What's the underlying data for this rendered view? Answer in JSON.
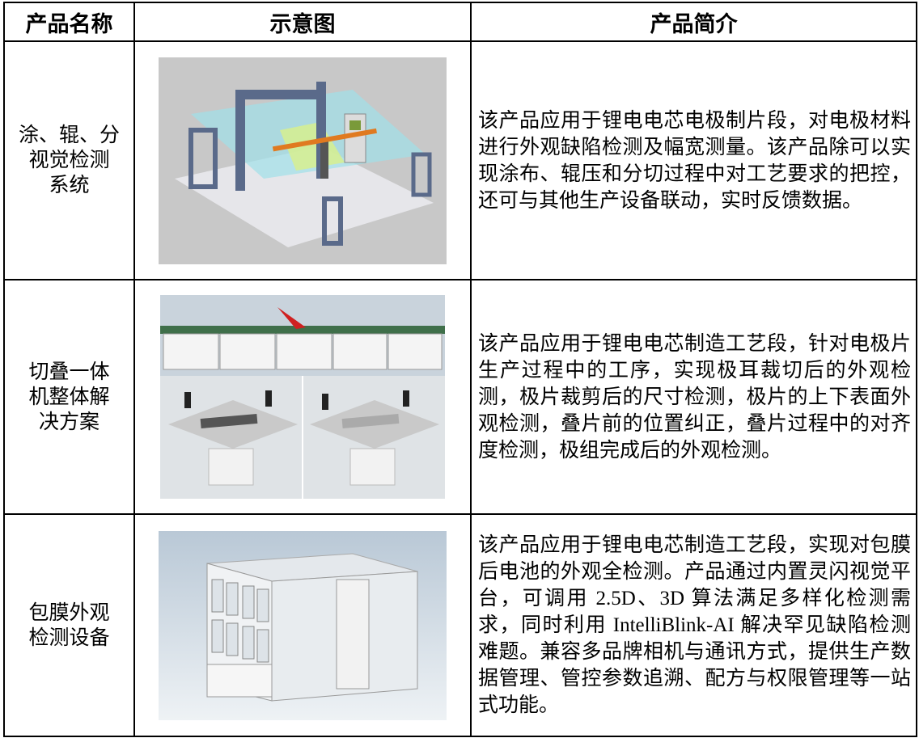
{
  "table": {
    "header": [
      "产品名称",
      "示意图",
      "产品简介"
    ],
    "rows": [
      {
        "name_lines": [
          "涂、辊、分",
          "视觉检测",
          "系统"
        ],
        "description": "该产品应用于锂电电芯电极制片段，对电极材料进行外观缺陷检测及幅宽测量。该产品除可以实现涂布、辊压和分切过程中对工艺要求的把控，还可与其他生产设备联动，实时反馈数据。"
      },
      {
        "name_lines": [
          "切叠一体",
          "机整体解",
          "决方案"
        ],
        "description": "该产品应用于锂电电芯制造工艺段，针对电极片生产过程中的工序，实现极耳裁切后的外观检测，极片裁剪后的尺寸检测，极片的上下表面外观检测，叠片前的位置纠正，叠片过程中的对齐度检测，极组完成后的外观检测。"
      },
      {
        "name_lines": [
          "包膜外观",
          "检测设备"
        ],
        "description": "该产品应用于锂电电芯制造工艺段，实现对包膜后电池的外观全检测。产品通过内置灵闪视觉平台，可调用 2.5D、3D 算法满足多样化检测需求，同时利用 IntelliBlink-AI 解决罕见缺陷检测难题。兼容多品牌相机与通讯方式，提供生产数据管理、管控参数追溯、配方与权限管理等一站式功能。"
      }
    ]
  }
}
